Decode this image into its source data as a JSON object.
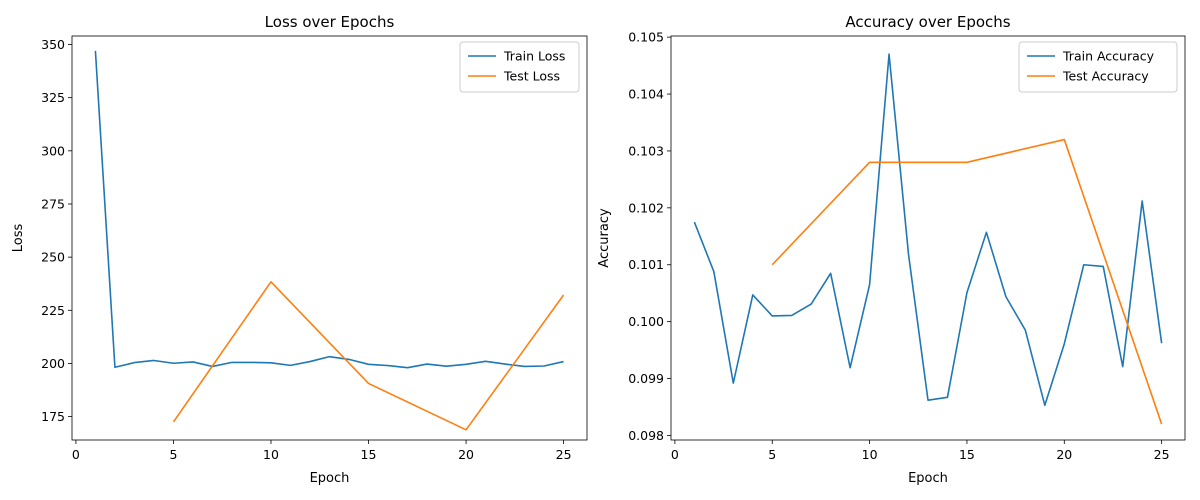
{
  "chart_data": [
    {
      "type": "line",
      "title": "Loss over Epochs",
      "xlabel": "Epoch",
      "ylabel": "Loss",
      "xlim": [
        -0.2,
        26.2
      ],
      "ylim": [
        164.0,
        354.0
      ],
      "xticks": [
        0,
        5,
        10,
        15,
        20,
        25
      ],
      "yticks": [
        175,
        200,
        225,
        250,
        275,
        300,
        325,
        350
      ],
      "legend_position": "top-right",
      "grid": false,
      "series": [
        {
          "name": "Train Loss",
          "color": "#1f77b4",
          "x": [
            1,
            2,
            3,
            4,
            5,
            6,
            7,
            8,
            9,
            10,
            11,
            12,
            13,
            14,
            15,
            16,
            17,
            18,
            19,
            20,
            21,
            22,
            23,
            24,
            25
          ],
          "y": [
            347.0,
            198.2,
            200.4,
            201.4,
            200.1,
            200.7,
            198.6,
            200.5,
            200.5,
            200.3,
            199.1,
            200.9,
            203.2,
            201.9,
            199.6,
            199.0,
            198.0,
            199.7,
            198.7,
            199.6,
            201.0,
            199.7,
            198.6,
            198.8,
            200.9
          ]
        },
        {
          "name": "Test Loss",
          "color": "#ff7f0e",
          "x": [
            5,
            10,
            15,
            20,
            25
          ],
          "y": [
            172.5,
            238.4,
            190.6,
            168.8,
            232.2
          ]
        }
      ]
    },
    {
      "type": "line",
      "title": "Accuracy over Epochs",
      "xlabel": "Epoch",
      "ylabel": "Accuracy",
      "xlim": [
        -0.2,
        26.2
      ],
      "ylim": [
        0.09792,
        0.10502
      ],
      "xticks": [
        0,
        5,
        10,
        15,
        20,
        25
      ],
      "yticks": [
        0.098,
        0.099,
        0.1,
        0.101,
        0.102,
        0.103,
        0.104,
        0.105
      ],
      "ytick_labels": [
        "0.098",
        "0.099",
        "0.100",
        "0.101",
        "0.102",
        "0.103",
        "0.104",
        "0.105"
      ],
      "legend_position": "top-right",
      "grid": false,
      "series": [
        {
          "name": "Train Accuracy",
          "color": "#1f77b4",
          "x": [
            1,
            2,
            3,
            4,
            5,
            6,
            7,
            8,
            9,
            10,
            11,
            12,
            13,
            14,
            15,
            16,
            17,
            18,
            19,
            20,
            21,
            22,
            23,
            24,
            25
          ],
          "y": [
            0.10175,
            0.10088,
            0.09892,
            0.10047,
            0.1001,
            0.10011,
            0.10031,
            0.10085,
            0.09919,
            0.10065,
            0.1047,
            0.10118,
            0.09862,
            0.09867,
            0.10051,
            0.10157,
            0.10044,
            0.09985,
            0.09853,
            0.09961,
            0.101,
            0.10097,
            0.09921,
            0.10212,
            0.09962
          ]
        },
        {
          "name": "Test Accuracy",
          "color": "#ff7f0e",
          "x": [
            5,
            10,
            15,
            20,
            25
          ],
          "y": [
            0.101,
            0.1028,
            0.1028,
            0.1032,
            0.0982
          ]
        }
      ]
    }
  ]
}
